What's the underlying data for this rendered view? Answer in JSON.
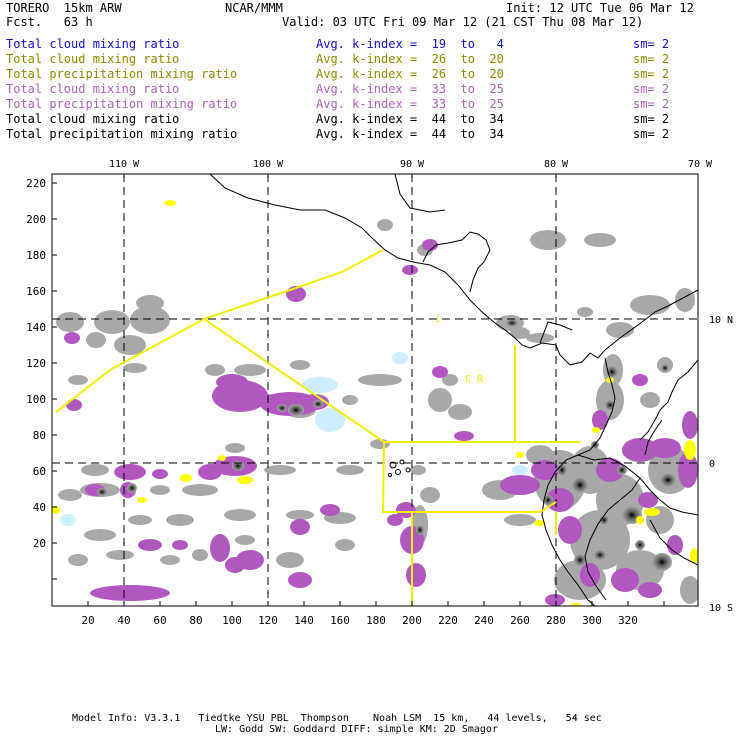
{
  "header": {
    "model": "TORERO  15km ARW",
    "org": "NCAR/MMM",
    "init": "Init: 12 UTC Tue 06 Mar 12",
    "fcst": "Fcst.   63 h",
    "valid": "Valid: 03 UTC Fri 09 Mar 12 (21 CST Thu 08 Mar 12)"
  },
  "legend": [
    {
      "field": "Total cloud mixing ratio",
      "kindex": "Avg. k-index =  19  to   4",
      "sm": "sm= 2",
      "color": "#1010cc"
    },
    {
      "field": "Total cloud mixing ratio",
      "kindex": "Avg. k-index =  26  to  20",
      "sm": "sm= 2",
      "color": "#8c8c00"
    },
    {
      "field": "Total precipitation mixing ratio",
      "kindex": "Avg. k-index =  26  to  20",
      "sm": "sm= 2",
      "color": "#8c8c00"
    },
    {
      "field": "Total cloud mixing ratio",
      "kindex": "Avg. k-index =  33  to  25",
      "sm": "sm= 2",
      "color": "#b060c0"
    },
    {
      "field": "Total precipitation mixing ratio",
      "kindex": "Avg. k-index =  33  to  25",
      "sm": "sm= 2",
      "color": "#b060c0"
    },
    {
      "field": "Total cloud mixing ratio",
      "kindex": "Avg. k-index =  44  to  34",
      "sm": "sm= 2",
      "color": "#000000"
    },
    {
      "field": "Total precipitation mixing ratio",
      "kindex": "Avg. k-index =  44  to  34",
      "sm": "sm= 2",
      "color": "#000000"
    }
  ],
  "map": {
    "lon_labels": [
      "110 W",
      "100 W",
      "90 W",
      "80 W",
      "70 W"
    ],
    "lat_labels": [
      "10 N",
      "0",
      "10 S"
    ],
    "x_ticks": [
      "20",
      "40",
      "60",
      "80",
      "100",
      "120",
      "140",
      "160",
      "180",
      "200",
      "220",
      "240",
      "260",
      "280",
      "300",
      "320"
    ],
    "y_ticks": [
      "220",
      "200",
      "180",
      "160",
      "140",
      "120",
      "100",
      "80",
      "60",
      "40",
      "20"
    ],
    "region_label": "C R",
    "colors": {
      "cloud_gray": "#a8a8a8",
      "precip_purple": "#b058c0",
      "light_cyan": "#cceeff",
      "yellow": "#ffff00",
      "ktrack": "#e8e800"
    }
  },
  "footer": {
    "line1": "Model Info: V3.3.1   Tiedtke YSU PBL  Thompson    Noah LSM  15 km,   44 levels,   54 sec",
    "line2": "LW: Godd SW: Goddard DIFF: simple KM: 2D Smagor"
  }
}
